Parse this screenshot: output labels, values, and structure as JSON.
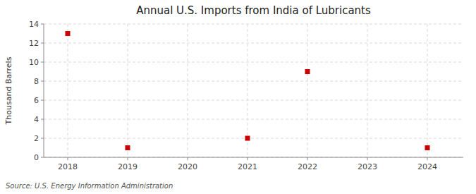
{
  "chart_data": {
    "type": "scatter",
    "title": "Annual U.S. Imports from India of Lubricants",
    "ylabel": "Thousand Barrels",
    "source": "Source: U.S. Energy Information Administration",
    "x": [
      2018,
      2019,
      2021,
      2022,
      2024
    ],
    "values": [
      13,
      1,
      2,
      9,
      1
    ],
    "color": "#cc0000",
    "marker": "square",
    "xlim": [
      2017.6,
      2024.6
    ],
    "xticks": [
      2018,
      2019,
      2020,
      2021,
      2022,
      2023,
      2024
    ],
    "ylim": [
      0,
      14
    ],
    "yticks": [
      0,
      2,
      4,
      6,
      8,
      10,
      12,
      14
    ],
    "grid": true
  }
}
